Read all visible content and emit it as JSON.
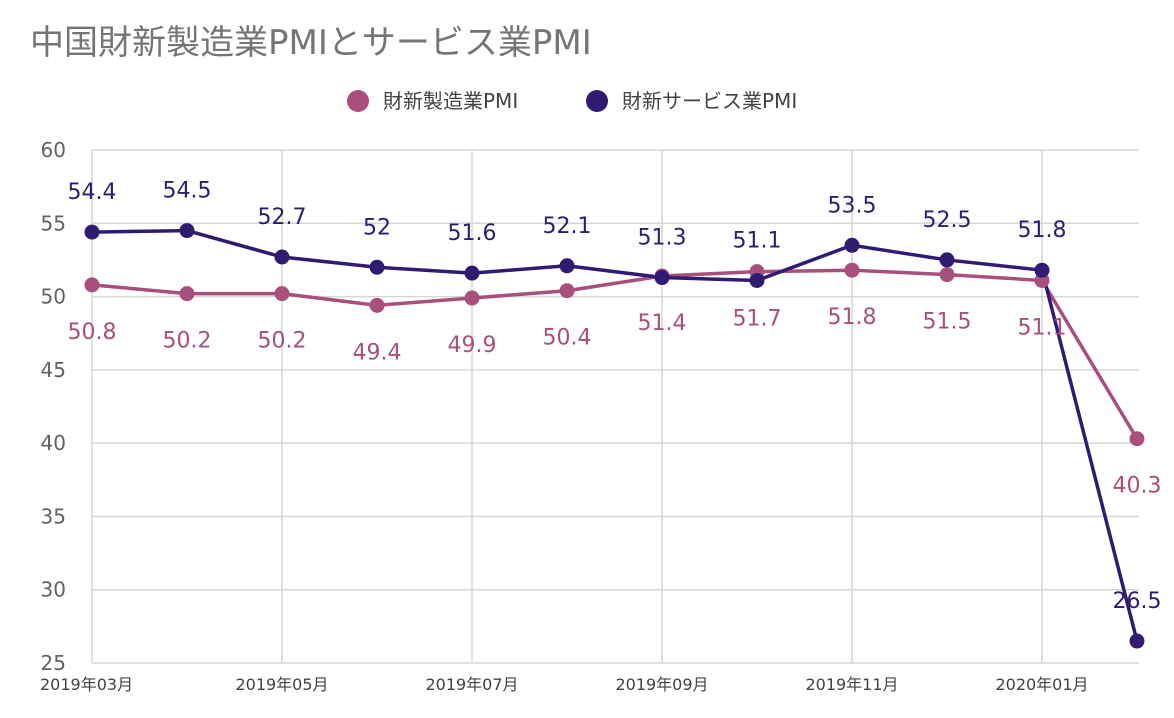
{
  "chart_data": {
    "type": "line",
    "title": "中国財新製造業PMIとサービス業PMI",
    "categories": [
      "2019年03月",
      "2019年04月",
      "2019年05月",
      "2019年06月",
      "2019年07月",
      "2019年08月",
      "2019年09月",
      "2019年10月",
      "2019年11月",
      "2019年12月",
      "2020年01月",
      "2020年02月"
    ],
    "x_tick_labels": [
      "2019年03月",
      "",
      "2019年05月",
      "",
      "2019年07月",
      "",
      "2019年09月",
      "",
      "2019年11月",
      "",
      "2020年01月",
      ""
    ],
    "ylim": [
      25,
      60
    ],
    "yticks": [
      25,
      30,
      35,
      40,
      45,
      50,
      55,
      60
    ],
    "grid": true,
    "legend_position": "top-center",
    "series": [
      {
        "name": "財新製造業PMI",
        "color": "#a84f7e",
        "values": [
          50.8,
          50.2,
          50.2,
          49.4,
          49.9,
          50.4,
          51.4,
          51.7,
          51.8,
          51.5,
          51.1,
          40.3
        ],
        "labels": [
          "50.8",
          "50.2",
          "50.2",
          "49.4",
          "49.9",
          "50.4",
          "51.4",
          "51.7",
          "51.8",
          "51.5",
          "51.1",
          "40.3"
        ]
      },
      {
        "name": "財新サービス業PMI",
        "color": "#311b72",
        "values": [
          54.4,
          54.5,
          52.7,
          52.0,
          51.6,
          52.1,
          51.3,
          51.1,
          53.5,
          52.5,
          51.8,
          26.5
        ],
        "labels": [
          "54.4",
          "54.5",
          "52.7",
          "52",
          "51.6",
          "52.1",
          "51.3",
          "51.1",
          "53.5",
          "52.5",
          "51.8",
          "26.5"
        ]
      }
    ]
  }
}
